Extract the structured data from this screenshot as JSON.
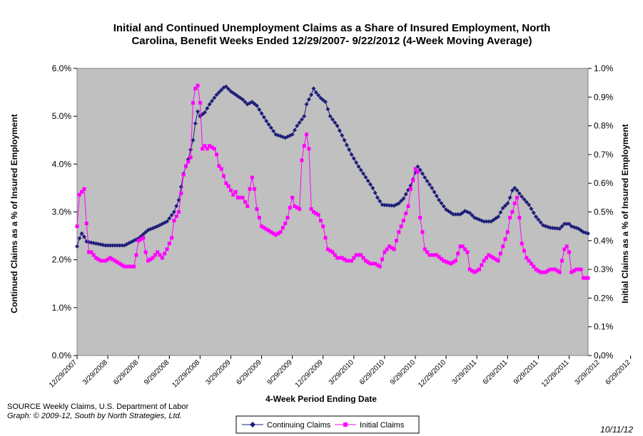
{
  "chart_data": {
    "type": "line",
    "title": "Initial and Continued Unemployment Claims as a Share of Insured Employment, North Carolina, Benefit Weeks Ended 12/29/2007- 9/22/2012 (4-Week Moving Average)",
    "title_line1": "Initial and Continued Unemployment Claims as a Share of Insured Employment, North",
    "title_line2": "Carolina, Benefit Weeks Ended 12/29/2007- 9/22/2012 (4-Week Moving Average)",
    "xlabel": "4-Week Period Ending Date",
    "ylabel_left": "Continued Claims as a % of Insured Employment",
    "ylabel_right": "Initial Claims as a % of Insured Employment",
    "ylim_left": [
      0,
      6
    ],
    "ylim_right": [
      0,
      1.0
    ],
    "yticks_left": [
      "0.0%",
      "1.0%",
      "2.0%",
      "3.0%",
      "4.0%",
      "5.0%",
      "6.0%"
    ],
    "yticks_right": [
      "0.0%",
      "0.1%",
      "0.2%",
      "0.3%",
      "0.4%",
      "0.5%",
      "0.6%",
      "0.7%",
      "0.8%",
      "0.9%",
      "1.0%"
    ],
    "xticks": [
      "12/29/2007",
      "3/29/2008",
      "6/29/2008",
      "9/29/2008",
      "12/29/2008",
      "3/29/2009",
      "6/29/2009",
      "9/29/2009",
      "12/29/2009",
      "3/29/2010",
      "6/29/2010",
      "9/29/2010",
      "12/29/2010",
      "3/29/2011",
      "6/29/2011",
      "9/29/2011",
      "12/29/2011",
      "3/29/2012",
      "6/29/2012"
    ],
    "x_start": "12/29/2007",
    "x_end": "9/22/2012",
    "grid": false,
    "legend_position": "bottom",
    "colors": {
      "plot_bg": "#c0c0c0",
      "continuing": "#1f1f7a",
      "initial": "#ff00ff"
    },
    "series": [
      {
        "name": "Continuing Claims",
        "axis": "left",
        "marker": "diamond",
        "keypoints": [
          [
            0,
            2.28
          ],
          [
            1,
            2.45
          ],
          [
            2,
            2.55
          ],
          [
            3,
            2.48
          ],
          [
            4,
            2.38
          ],
          [
            12,
            2.3
          ],
          [
            20,
            2.3
          ],
          [
            26,
            2.45
          ],
          [
            30,
            2.62
          ],
          [
            34,
            2.7
          ],
          [
            38,
            2.8
          ],
          [
            41,
            3.0
          ],
          [
            43,
            3.25
          ],
          [
            45,
            3.8
          ],
          [
            47,
            4.1
          ],
          [
            49,
            4.5
          ],
          [
            50,
            4.85
          ],
          [
            51,
            5.1
          ],
          [
            52,
            5.0
          ],
          [
            54,
            5.08
          ],
          [
            56,
            5.25
          ],
          [
            59,
            5.45
          ],
          [
            62,
            5.6
          ],
          [
            63,
            5.62
          ],
          [
            65,
            5.52
          ],
          [
            70,
            5.35
          ],
          [
            72,
            5.25
          ],
          [
            74,
            5.3
          ],
          [
            76,
            5.22
          ],
          [
            80,
            4.9
          ],
          [
            84,
            4.62
          ],
          [
            88,
            4.55
          ],
          [
            91,
            4.62
          ],
          [
            93,
            4.8
          ],
          [
            96,
            5.0
          ],
          [
            97,
            5.25
          ],
          [
            99,
            5.45
          ],
          [
            100,
            5.58
          ],
          [
            101,
            5.5
          ],
          [
            103,
            5.38
          ],
          [
            105,
            5.3
          ],
          [
            107,
            5.0
          ],
          [
            110,
            4.8
          ],
          [
            113,
            4.5
          ],
          [
            116,
            4.2
          ],
          [
            119,
            3.95
          ],
          [
            121,
            3.8
          ],
          [
            125,
            3.5
          ],
          [
            127,
            3.3
          ],
          [
            129,
            3.15
          ],
          [
            134,
            3.13
          ],
          [
            136,
            3.18
          ],
          [
            138,
            3.28
          ],
          [
            141,
            3.55
          ],
          [
            143,
            3.82
          ],
          [
            144,
            3.95
          ],
          [
            145,
            3.88
          ],
          [
            147,
            3.72
          ],
          [
            150,
            3.5
          ],
          [
            153,
            3.25
          ],
          [
            156,
            3.05
          ],
          [
            159,
            2.95
          ],
          [
            162,
            2.95
          ],
          [
            164,
            3.02
          ],
          [
            166,
            2.98
          ],
          [
            168,
            2.88
          ],
          [
            172,
            2.8
          ],
          [
            175,
            2.8
          ],
          [
            178,
            2.9
          ],
          [
            180,
            3.08
          ],
          [
            182,
            3.18
          ],
          [
            183,
            3.3
          ],
          [
            184,
            3.45
          ],
          [
            185,
            3.5
          ],
          [
            186,
            3.45
          ],
          [
            188,
            3.32
          ],
          [
            191,
            3.15
          ],
          [
            194,
            2.9
          ],
          [
            197,
            2.72
          ],
          [
            200,
            2.67
          ],
          [
            204,
            2.65
          ],
          [
            206,
            2.75
          ],
          [
            208,
            2.75
          ],
          [
            209,
            2.7
          ],
          [
            212,
            2.65
          ],
          [
            214,
            2.58
          ],
          [
            216,
            2.55
          ]
        ]
      },
      {
        "name": "Initial Claims",
        "axis": "right",
        "marker": "square",
        "keypoints": [
          [
            0,
            0.45
          ],
          [
            1,
            0.56
          ],
          [
            2,
            0.57
          ],
          [
            3,
            0.58
          ],
          [
            4,
            0.46
          ],
          [
            5,
            0.36
          ],
          [
            6,
            0.36
          ],
          [
            8,
            0.34
          ],
          [
            10,
            0.33
          ],
          [
            12,
            0.33
          ],
          [
            14,
            0.34
          ],
          [
            16,
            0.33
          ],
          [
            18,
            0.32
          ],
          [
            20,
            0.31
          ],
          [
            22,
            0.31
          ],
          [
            24,
            0.31
          ],
          [
            25,
            0.35
          ],
          [
            26,
            0.4
          ],
          [
            28,
            0.41
          ],
          [
            29,
            0.36
          ],
          [
            30,
            0.33
          ],
          [
            32,
            0.34
          ],
          [
            34,
            0.36
          ],
          [
            36,
            0.34
          ],
          [
            38,
            0.37
          ],
          [
            40,
            0.41
          ],
          [
            41,
            0.47
          ],
          [
            43,
            0.5
          ],
          [
            45,
            0.63
          ],
          [
            46,
            0.66
          ],
          [
            48,
            0.69
          ],
          [
            49,
            0.88
          ],
          [
            50,
            0.93
          ],
          [
            51,
            0.94
          ],
          [
            52,
            0.88
          ],
          [
            53,
            0.72
          ],
          [
            54,
            0.73
          ],
          [
            55,
            0.72
          ],
          [
            56,
            0.73
          ],
          [
            58,
            0.72
          ],
          [
            59,
            0.7
          ],
          [
            60,
            0.66
          ],
          [
            61,
            0.65
          ],
          [
            63,
            0.6
          ],
          [
            64,
            0.59
          ],
          [
            66,
            0.56
          ],
          [
            67,
            0.57
          ],
          [
            68,
            0.55
          ],
          [
            70,
            0.55
          ],
          [
            72,
            0.52
          ],
          [
            73,
            0.58
          ],
          [
            74,
            0.62
          ],
          [
            75,
            0.58
          ],
          [
            76,
            0.51
          ],
          [
            78,
            0.45
          ],
          [
            80,
            0.44
          ],
          [
            82,
            0.43
          ],
          [
            84,
            0.42
          ],
          [
            86,
            0.43
          ],
          [
            88,
            0.46
          ],
          [
            89,
            0.48
          ],
          [
            91,
            0.55
          ],
          [
            92,
            0.52
          ],
          [
            94,
            0.51
          ],
          [
            95,
            0.68
          ],
          [
            96,
            0.73
          ],
          [
            97,
            0.77
          ],
          [
            98,
            0.72
          ],
          [
            99,
            0.51
          ],
          [
            100,
            0.5
          ],
          [
            102,
            0.49
          ],
          [
            104,
            0.45
          ],
          [
            106,
            0.37
          ],
          [
            108,
            0.36
          ],
          [
            110,
            0.34
          ],
          [
            112,
            0.34
          ],
          [
            114,
            0.33
          ],
          [
            116,
            0.33
          ],
          [
            118,
            0.35
          ],
          [
            120,
            0.35
          ],
          [
            122,
            0.33
          ],
          [
            124,
            0.32
          ],
          [
            126,
            0.32
          ],
          [
            128,
            0.31
          ],
          [
            130,
            0.36
          ],
          [
            132,
            0.38
          ],
          [
            134,
            0.37
          ],
          [
            136,
            0.43
          ],
          [
            138,
            0.47
          ],
          [
            140,
            0.52
          ],
          [
            141,
            0.58
          ],
          [
            142,
            0.61
          ],
          [
            143,
            0.65
          ],
          [
            144,
            0.64
          ],
          [
            145,
            0.48
          ],
          [
            146,
            0.43
          ],
          [
            147,
            0.37
          ],
          [
            149,
            0.35
          ],
          [
            152,
            0.35
          ],
          [
            155,
            0.33
          ],
          [
            158,
            0.32
          ],
          [
            160,
            0.33
          ],
          [
            162,
            0.38
          ],
          [
            163,
            0.38
          ],
          [
            165,
            0.36
          ],
          [
            166,
            0.3
          ],
          [
            168,
            0.29
          ],
          [
            170,
            0.3
          ],
          [
            172,
            0.33
          ],
          [
            174,
            0.35
          ],
          [
            176,
            0.34
          ],
          [
            178,
            0.33
          ],
          [
            180,
            0.38
          ],
          [
            182,
            0.43
          ],
          [
            183,
            0.48
          ],
          [
            184,
            0.5
          ],
          [
            185,
            0.53
          ],
          [
            186,
            0.55
          ],
          [
            187,
            0.48
          ],
          [
            188,
            0.39
          ],
          [
            190,
            0.34
          ],
          [
            192,
            0.32
          ],
          [
            194,
            0.3
          ],
          [
            196,
            0.29
          ],
          [
            198,
            0.29
          ],
          [
            200,
            0.3
          ],
          [
            202,
            0.3
          ],
          [
            204,
            0.29
          ],
          [
            206,
            0.37
          ],
          [
            207,
            0.38
          ],
          [
            208,
            0.36
          ],
          [
            209,
            0.29
          ],
          [
            211,
            0.3
          ],
          [
            213,
            0.3
          ],
          [
            214,
            0.27
          ],
          [
            216,
            0.27
          ]
        ]
      }
    ]
  },
  "source": {
    "line1": "SOURCE  Weekly Claims, U.S. Department of Labor",
    "line2": "Graph: © 2009-12, South by North Strategies, Ltd."
  },
  "date_stamp": "10/11/12"
}
